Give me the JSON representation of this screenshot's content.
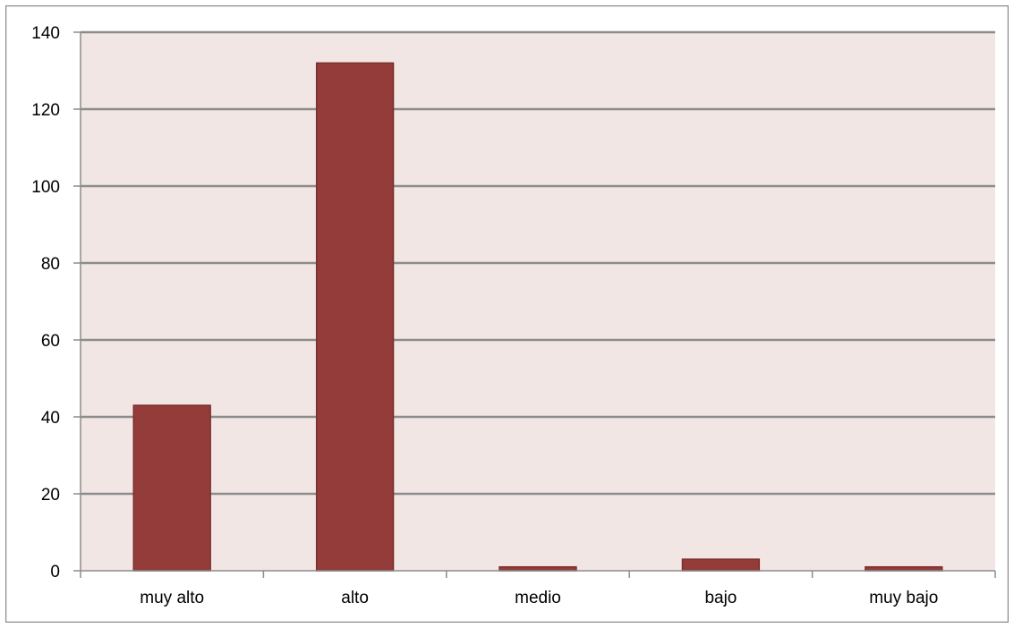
{
  "chart_data": {
    "type": "bar",
    "title": "",
    "xlabel": "",
    "ylabel": "",
    "categories": [
      "muy alto",
      "alto",
      "medio",
      "bajo",
      "muy bajo"
    ],
    "values": [
      43,
      132,
      1,
      3,
      1
    ],
    "ylim": [
      0,
      140
    ],
    "yticks": [
      0,
      20,
      40,
      60,
      80,
      100,
      120,
      140
    ],
    "grid": true,
    "legend": "none",
    "colors": {
      "bar": "#943c3a",
      "bar_edge": "#7a2e2c",
      "plot_background": "#f2e6e5",
      "gridline": "#8c8c8c",
      "frame": "#8c8c8c"
    }
  }
}
